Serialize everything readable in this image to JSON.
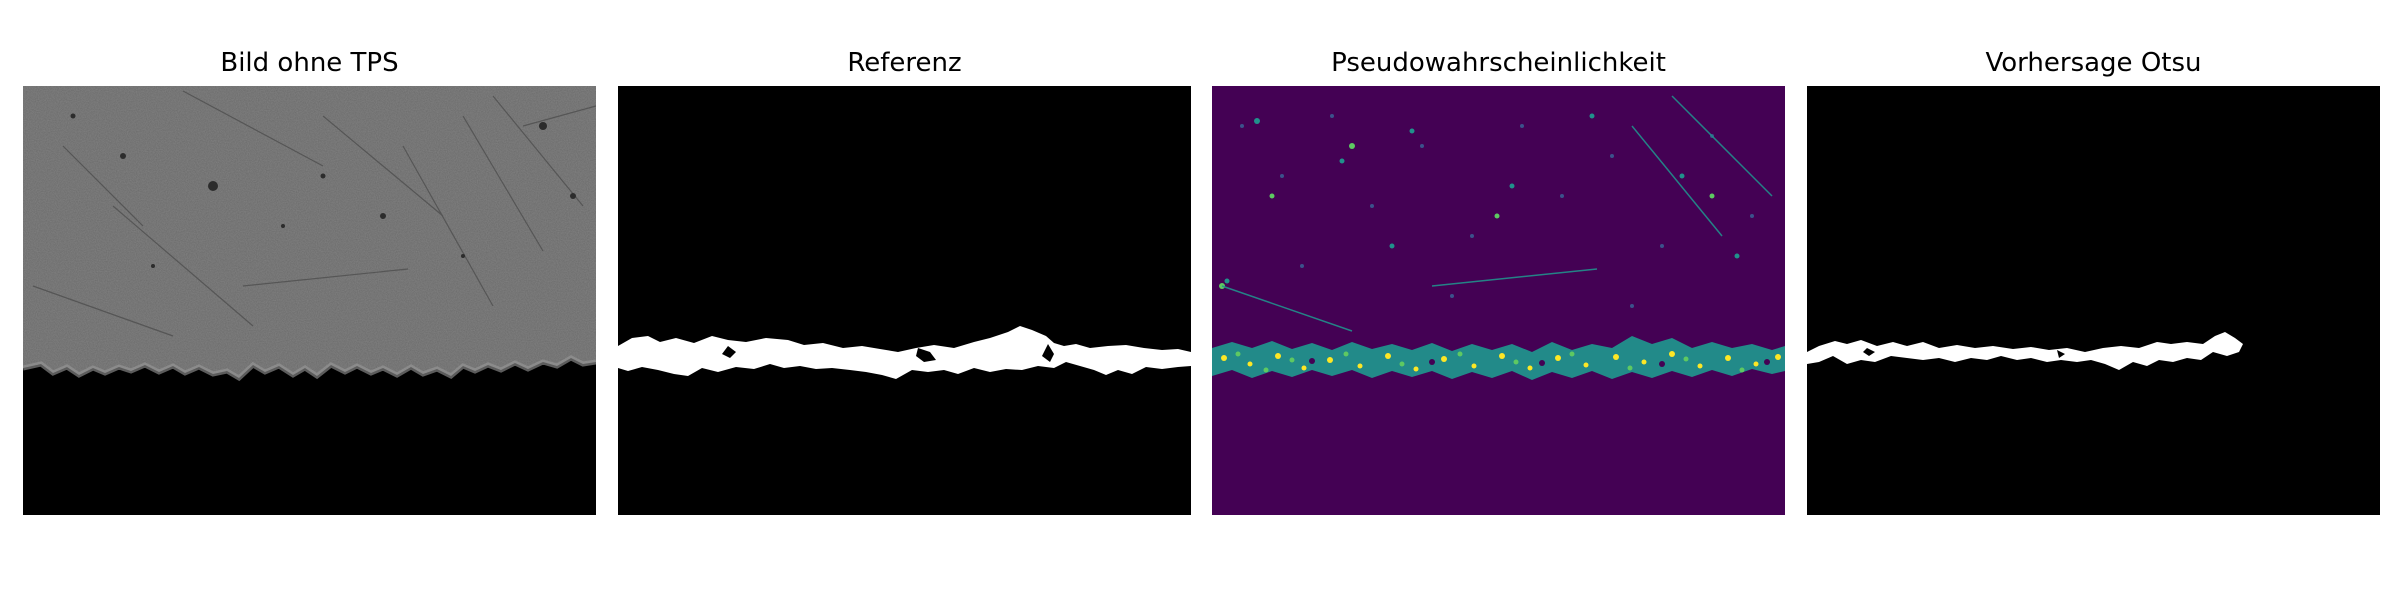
{
  "panels": [
    {
      "title": "Bild ohne TPS",
      "kind": "micrograph"
    },
    {
      "title": "Referenz",
      "kind": "binary-mask"
    },
    {
      "title": "Pseudowahrscheinlichkeit",
      "kind": "probability-map"
    },
    {
      "title": "Vorhersage Otsu",
      "kind": "binary-mask-partial"
    }
  ],
  "colors": {
    "background": "#ffffff",
    "micrograph_surface": "#6a6a6a",
    "micrograph_dark": "#000000",
    "mask_fg": "#ffffff",
    "mask_bg": "#000000",
    "viridis_low": "#440154",
    "viridis_mid": "#21918c",
    "viridis_high": "#fde725",
    "viridis_green": "#5ec962"
  }
}
